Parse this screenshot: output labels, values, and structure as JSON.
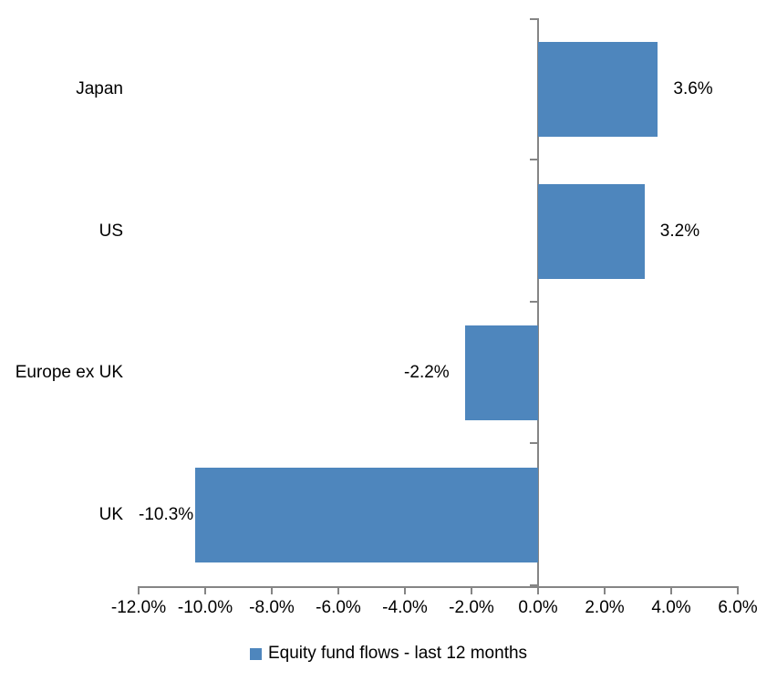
{
  "chart_data": {
    "type": "bar",
    "orientation": "horizontal",
    "title": "",
    "xlabel": "",
    "ylabel": "",
    "categories": [
      "Japan",
      "US",
      "Europe ex UK",
      "UK"
    ],
    "series": [
      {
        "name": "Equity fund flows - last 12 months",
        "values": [
          3.6,
          3.2,
          -2.2,
          -10.3
        ],
        "value_labels": [
          "3.6%",
          "3.2%",
          "-2.2%",
          "-10.3%"
        ]
      }
    ],
    "xlim": [
      -12,
      6
    ],
    "x_ticks": [
      -12,
      -10,
      -8,
      -6,
      -4,
      -2,
      0,
      2,
      4,
      6
    ],
    "x_tick_labels": [
      "-12.0%",
      "-10.0%",
      "-8.0%",
      "-6.0%",
      "-4.0%",
      "-2.0%",
      "0.0%",
      "2.0%",
      "4.0%",
      "6.0%"
    ],
    "grid": false,
    "legend_position": "bottom",
    "bar_color": "#4E86BD",
    "axis_color": "#858585",
    "text_color": "#000000"
  },
  "legend": {
    "label": "Equity fund flows - last 12 months",
    "marker_color": "#4E86BD"
  }
}
